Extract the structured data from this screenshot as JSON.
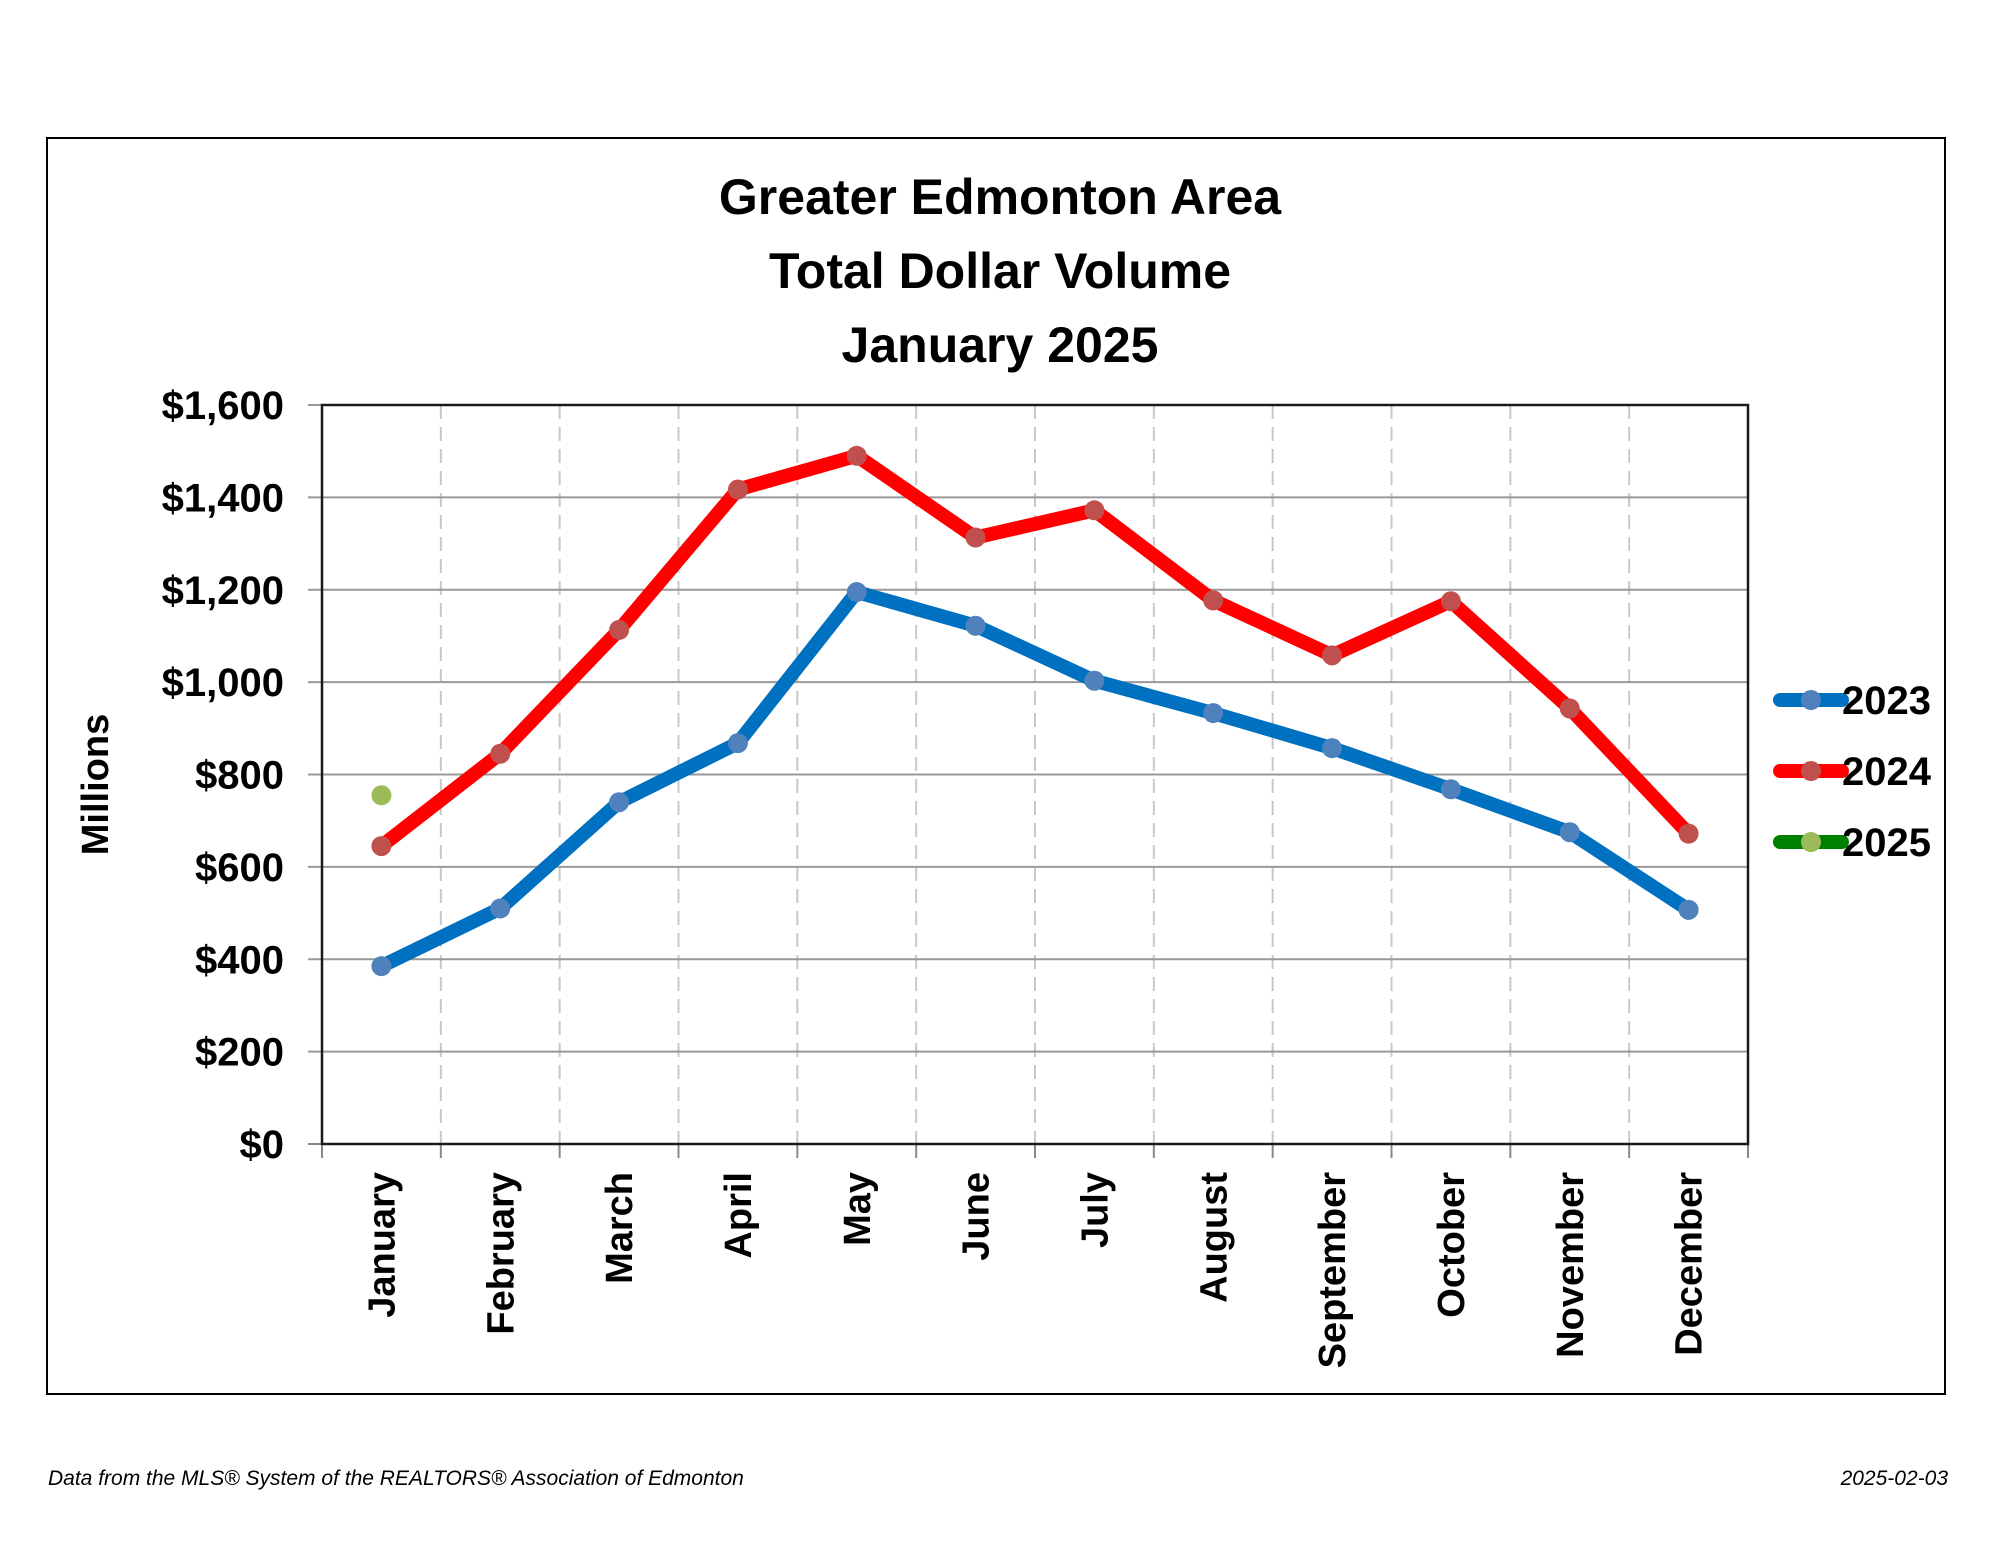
{
  "header": {
    "title_line1": "Greater Edmonton Area",
    "title_line2": "Total Dollar Volume",
    "title_line3": "January 2025"
  },
  "footer": {
    "source": "Data from the MLS® System of the REALTORS® Association of Edmonton",
    "date": "2025-02-03"
  },
  "chart_data": {
    "type": "line",
    "title": "Greater Edmonton Area Total Dollar Volume January 2025",
    "ylabel": "Millions",
    "xlabel": "",
    "ylim": [
      0,
      1600
    ],
    "yticks": [
      0,
      200,
      400,
      600,
      800,
      1000,
      1200,
      1400,
      1600
    ],
    "ytick_labels": [
      "$0",
      "$200",
      "$400",
      "$600",
      "$800",
      "$1,000",
      "$1,200",
      "$1,400",
      "$1,600"
    ],
    "categories": [
      "January",
      "February",
      "March",
      "April",
      "May",
      "June",
      "July",
      "August",
      "September",
      "October",
      "November",
      "December"
    ],
    "grid": true,
    "legend_position": "right",
    "series": [
      {
        "name": "2023",
        "color": "#0070C0",
        "marker_color": "#4F81BD",
        "values": [
          385,
          510,
          740,
          868,
          1195,
          1122,
          1003,
          933,
          857,
          768,
          675,
          507
        ]
      },
      {
        "name": "2024",
        "color": "#FF0000",
        "marker_color": "#C0504D",
        "values": [
          645,
          845,
          1113,
          1417,
          1490,
          1313,
          1372,
          1177,
          1058,
          1175,
          943,
          672
        ]
      },
      {
        "name": "2025",
        "color": "#008000",
        "marker_color": "#9BBB59",
        "values": [
          755,
          null,
          null,
          null,
          null,
          null,
          null,
          null,
          null,
          null,
          null,
          null
        ]
      }
    ]
  }
}
